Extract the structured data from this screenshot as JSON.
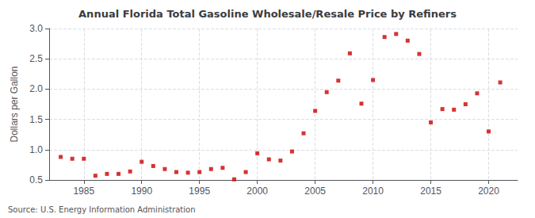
{
  "chart_data": {
    "type": "scatter",
    "title": "Annual Florida Total Gasoline Wholesale/Resale Price by Refiners",
    "ylabel": "Dollars per Gallon",
    "annotation": "Source: U.S. Energy Information Administration",
    "x": [
      1983,
      1984,
      1985,
      1986,
      1987,
      1988,
      1989,
      1990,
      1991,
      1992,
      1993,
      1994,
      1995,
      1996,
      1997,
      1998,
      1999,
      2000,
      2001,
      2002,
      2003,
      2004,
      2005,
      2006,
      2007,
      2008,
      2009,
      2010,
      2011,
      2012,
      2013,
      2014,
      2015,
      2016,
      2017,
      2018,
      2019,
      2020,
      2021
    ],
    "values": [
      0.88,
      0.85,
      0.85,
      0.57,
      0.6,
      0.6,
      0.64,
      0.8,
      0.73,
      0.68,
      0.63,
      0.62,
      0.63,
      0.68,
      0.7,
      0.51,
      0.63,
      0.94,
      0.84,
      0.82,
      0.97,
      1.27,
      1.64,
      1.95,
      2.14,
      2.59,
      1.76,
      2.15,
      2.86,
      2.91,
      2.8,
      2.58,
      1.45,
      1.67,
      1.66,
      1.75,
      1.93,
      1.3,
      2.11
    ],
    "color": "#cc0000",
    "marker": "square",
    "xlim": [
      1982,
      2022.5
    ],
    "xticks": [
      1985,
      1990,
      1995,
      2000,
      2005,
      2010,
      2015,
      2020
    ],
    "ylim": [
      0.5,
      3.0
    ],
    "yticks": [
      0.5,
      {
        "value": 1,
        "label": "1.0"
      },
      1.5,
      {
        "value": 2,
        "label": "2.0"
      },
      2.5,
      {
        "value": 3,
        "label": "3.0"
      }
    ],
    "grid": true
  }
}
